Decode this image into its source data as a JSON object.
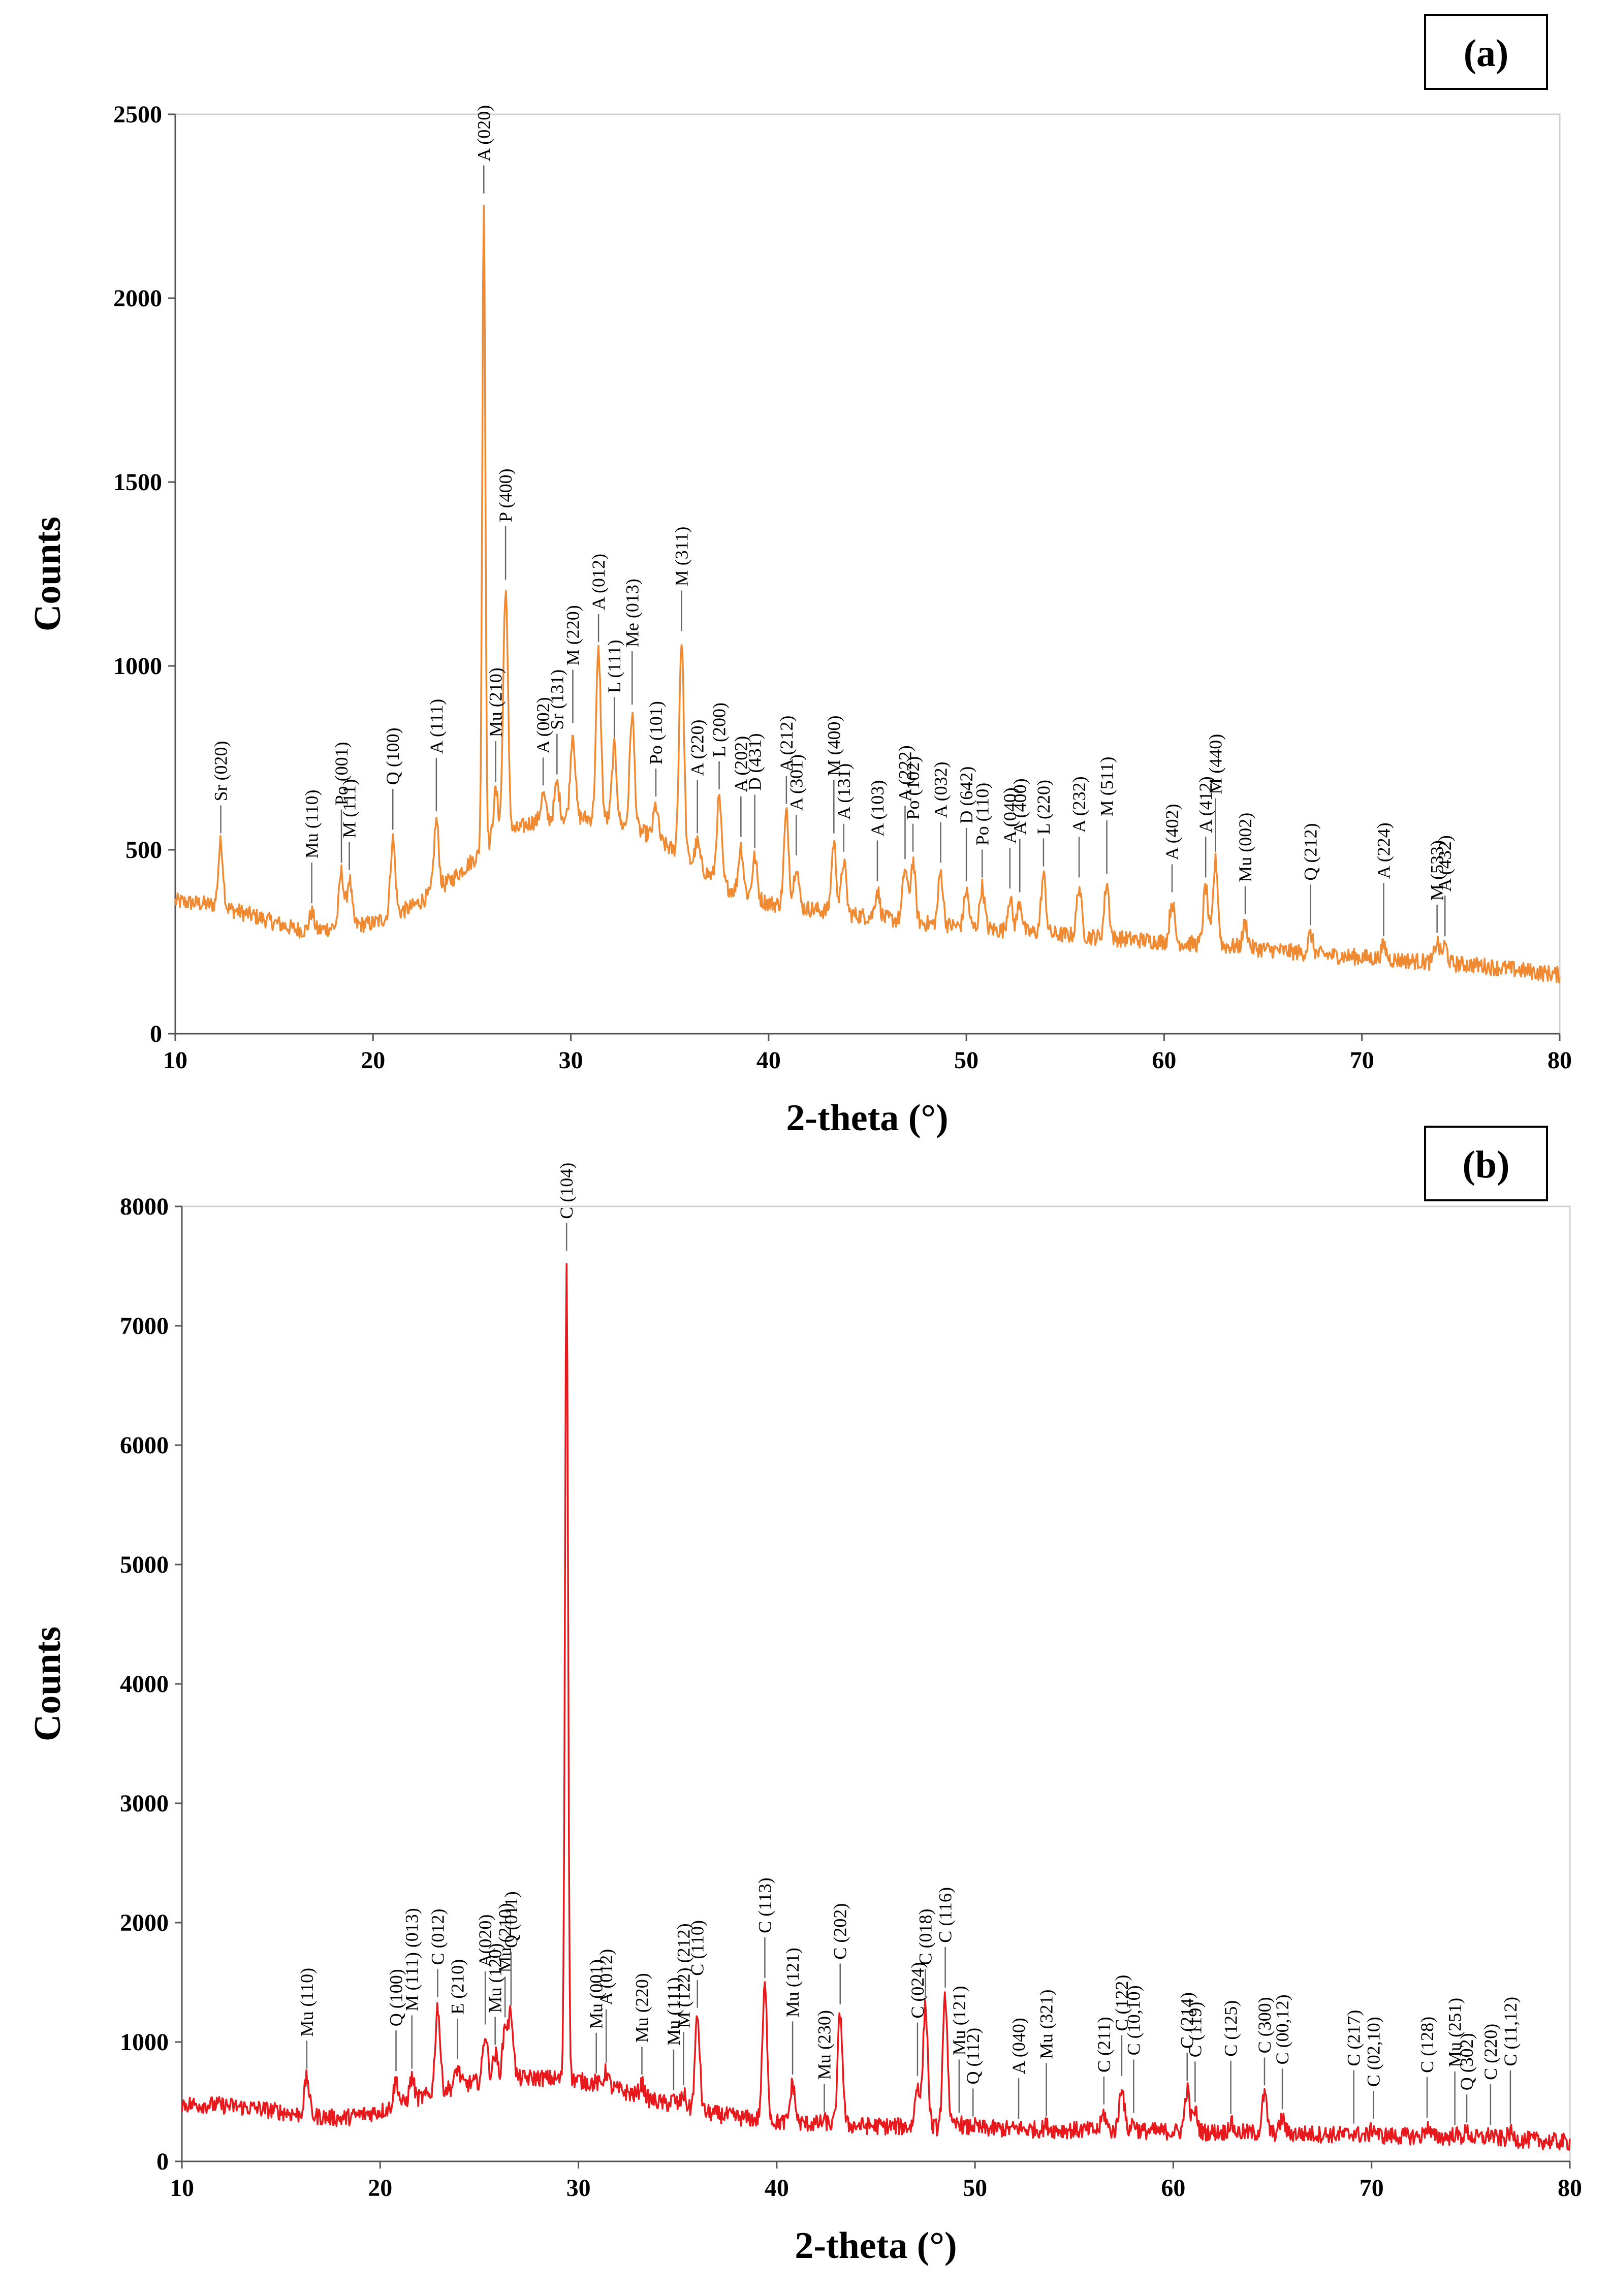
{
  "chart_data": [
    {
      "type": "line",
      "panel_label": "(a)",
      "xlabel": "2-theta (°)",
      "ylabel": "Counts",
      "xlim": [
        10,
        80
      ],
      "ylim": [
        0,
        2500
      ],
      "xticks": [
        "10",
        "20",
        "30",
        "40",
        "50",
        "60",
        "70",
        "80"
      ],
      "yticks": [
        "0",
        "500",
        "1000",
        "1500",
        "2000",
        "2500"
      ],
      "line_color": "#f08a32",
      "baseline": [
        [
          10,
          360
        ],
        [
          12,
          350
        ],
        [
          14,
          320
        ],
        [
          16,
          285
        ],
        [
          17,
          278
        ],
        [
          18,
          290
        ],
        [
          20,
          300
        ],
        [
          22,
          345
        ],
        [
          24,
          420
        ],
        [
          26,
          520
        ],
        [
          28,
          575
        ],
        [
          30,
          590
        ],
        [
          32,
          580
        ],
        [
          34,
          540
        ],
        [
          36,
          470
        ],
        [
          38,
          395
        ],
        [
          40,
          355
        ],
        [
          44,
          325
        ],
        [
          48,
          300
        ],
        [
          52,
          280
        ],
        [
          56,
          265
        ],
        [
          60,
          250
        ],
        [
          64,
          235
        ],
        [
          68,
          215
        ],
        [
          72,
          200
        ],
        [
          76,
          185
        ],
        [
          80,
          160
        ]
      ],
      "peaks": [
        {
          "x": 12.3,
          "y": 520,
          "label": "Sr (020)"
        },
        {
          "x": 16.9,
          "y": 330,
          "label": "Mu (110)"
        },
        {
          "x": 18.4,
          "y": 440,
          "label": "Po (001)"
        },
        {
          "x": 18.8,
          "y": 420,
          "label": "M (111)"
        },
        {
          "x": 21.0,
          "y": 530,
          "label": "Q (100)"
        },
        {
          "x": 23.2,
          "y": 580,
          "label": "A (111)"
        },
        {
          "x": 25.6,
          "y": 2260,
          "label": "A (020)"
        },
        {
          "x": 26.2,
          "y": 660,
          "label": "Mu (210)"
        },
        {
          "x": 26.7,
          "y": 1210,
          "label": "P (400)"
        },
        {
          "x": 28.6,
          "y": 650,
          "label": "A (002)"
        },
        {
          "x": 29.3,
          "y": 680,
          "label": "Sr (131)"
        },
        {
          "x": 30.1,
          "y": 820,
          "label": "M (220)"
        },
        {
          "x": 31.4,
          "y": 1040,
          "label": "A (012)"
        },
        {
          "x": 32.2,
          "y": 780,
          "label": "L (111)"
        },
        {
          "x": 33.1,
          "y": 870,
          "label": "Me (013)"
        },
        {
          "x": 34.3,
          "y": 620,
          "label": "Po (101)"
        },
        {
          "x": 35.6,
          "y": 1070,
          "label": "M (311)"
        },
        {
          "x": 36.4,
          "y": 520,
          "label": "A (220)"
        },
        {
          "x": 37.5,
          "y": 640,
          "label": "L (200)"
        },
        {
          "x": 38.6,
          "y": 510,
          "label": "A (202)"
        },
        {
          "x": 39.3,
          "y": 480,
          "label": "D (431)"
        },
        {
          "x": 40.9,
          "y": 600,
          "label": "A (212)"
        },
        {
          "x": 41.4,
          "y": 460,
          "label": "A (301)"
        },
        {
          "x": 43.3,
          "y": 520,
          "label": "M (400)"
        },
        {
          "x": 43.8,
          "y": 470,
          "label": "A (131)"
        },
        {
          "x": 45.5,
          "y": 390,
          "label": "A (103)"
        },
        {
          "x": 46.9,
          "y": 450,
          "label": "A (222)"
        },
        {
          "x": 47.3,
          "y": 470,
          "label": "Po (102)"
        },
        {
          "x": 48.7,
          "y": 440,
          "label": "A (032)"
        },
        {
          "x": 50.0,
          "y": 390,
          "label": "D (642)"
        },
        {
          "x": 50.8,
          "y": 400,
          "label": "Po (110)"
        },
        {
          "x": 52.2,
          "y": 370,
          "label": "A (040)"
        },
        {
          "x": 52.7,
          "y": 360,
          "label": "A (400)"
        },
        {
          "x": 53.9,
          "y": 430,
          "label": "L (220)"
        },
        {
          "x": 55.7,
          "y": 400,
          "label": "A (232)"
        },
        {
          "x": 57.1,
          "y": 410,
          "label": "M (511)"
        },
        {
          "x": 60.4,
          "y": 360,
          "label": "A (402)"
        },
        {
          "x": 62.1,
          "y": 400,
          "label": "A (412)"
        },
        {
          "x": 62.6,
          "y": 470,
          "label": "M (440)"
        },
        {
          "x": 64.1,
          "y": 300,
          "label": "Mu (002)"
        },
        {
          "x": 67.4,
          "y": 270,
          "label": "Q (212)"
        },
        {
          "x": 71.1,
          "y": 240,
          "label": "A (224)"
        },
        {
          "x": 73.8,
          "y": 250,
          "label": "M (533)"
        },
        {
          "x": 74.2,
          "y": 240,
          "label": "A (432)"
        }
      ]
    },
    {
      "type": "line",
      "panel_label": "(b)",
      "xlabel": "2-theta (°)",
      "ylabel": "Counts",
      "xlim": [
        10,
        80
      ],
      "ylim": [
        0,
        8000
      ],
      "xticks": [
        "10",
        "20",
        "30",
        "40",
        "50",
        "60",
        "70",
        "80"
      ],
      "yticks": [
        "0",
        "1000",
        "2000",
        "3000",
        "4000",
        "5000",
        "6000",
        "7000",
        "8000"
      ],
      "line_color": "#e8191c",
      "baseline": [
        [
          10,
          480
        ],
        [
          12,
          470
        ],
        [
          14,
          440
        ],
        [
          16,
          390
        ],
        [
          18,
          360
        ],
        [
          20,
          420
        ],
        [
          22,
          530
        ],
        [
          24,
          640
        ],
        [
          26,
          690
        ],
        [
          28,
          700
        ],
        [
          30,
          680
        ],
        [
          32,
          600
        ],
        [
          34,
          500
        ],
        [
          36,
          420
        ],
        [
          38,
          370
        ],
        [
          40,
          330
        ],
        [
          44,
          300
        ],
        [
          48,
          285
        ],
        [
          52,
          270
        ],
        [
          56,
          260
        ],
        [
          60,
          250
        ],
        [
          64,
          240
        ],
        [
          68,
          225
        ],
        [
          72,
          210
        ],
        [
          76,
          195
        ],
        [
          80,
          160
        ]
      ],
      "peaks": [
        {
          "x": 16.3,
          "y": 700,
          "label": "Mu (110)"
        },
        {
          "x": 20.8,
          "y": 680,
          "label": "Q (100)"
        },
        {
          "x": 21.6,
          "y": 700,
          "label": "M (111) (013)"
        },
        {
          "x": 22.9,
          "y": 1300,
          "label": "C (012)"
        },
        {
          "x": 23.9,
          "y": 780,
          "label": "E (210)"
        },
        {
          "x": 25.3,
          "y": 1070,
          "label": "A(020)"
        },
        {
          "x": 25.8,
          "y": 900,
          "label": "Mu (120)"
        },
        {
          "x": 26.3,
          "y": 1130,
          "label": "Mu (210)"
        },
        {
          "x": 26.6,
          "y": 1230,
          "label": "Q (011)"
        },
        {
          "x": 29.4,
          "y": 7550,
          "label": "C (104)"
        },
        {
          "x": 30.9,
          "y": 660,
          "label": "Mu (001)"
        },
        {
          "x": 31.4,
          "y": 750,
          "label": "A (012)"
        },
        {
          "x": 33.2,
          "y": 650,
          "label": "Mu (220)"
        },
        {
          "x": 34.8,
          "y": 520,
          "label": "Mu (111)"
        },
        {
          "x": 35.3,
          "y": 560,
          "label": "M (122) (212)"
        },
        {
          "x": 36.0,
          "y": 1210,
          "label": "C (110)"
        },
        {
          "x": 39.4,
          "y": 1460,
          "label": "C (113)"
        },
        {
          "x": 40.8,
          "y": 650,
          "label": "Mu (121)"
        },
        {
          "x": 42.4,
          "y": 340,
          "label": "Mu (230)"
        },
        {
          "x": 43.2,
          "y": 1240,
          "label": "C (202)"
        },
        {
          "x": 47.1,
          "y": 640,
          "label": "C (024)"
        },
        {
          "x": 47.5,
          "y": 1300,
          "label": "C (018)"
        },
        {
          "x": 48.5,
          "y": 1380,
          "label": "C (116)"
        },
        {
          "x": 49.2,
          "y": 330,
          "label": "Mu (121)"
        },
        {
          "x": 49.9,
          "y": 300,
          "label": "Q (112)"
        },
        {
          "x": 52.2,
          "y": 280,
          "label": "A (040)"
        },
        {
          "x": 53.6,
          "y": 300,
          "label": "Mu (321)"
        },
        {
          "x": 56.5,
          "y": 400,
          "label": "C (211)"
        },
        {
          "x": 57.4,
          "y": 640,
          "label": "C (122)"
        },
        {
          "x": 58.0,
          "y": 330,
          "label": "C (10,10)"
        },
        {
          "x": 60.7,
          "y": 600,
          "label": "C (214)"
        },
        {
          "x": 61.1,
          "y": 420,
          "label": "C (119)"
        },
        {
          "x": 62.9,
          "y": 320,
          "label": "C (125)"
        },
        {
          "x": 64.6,
          "y": 560,
          "label": "C (300)"
        },
        {
          "x": 65.5,
          "y": 360,
          "label": "C (00,12)"
        },
        {
          "x": 69.1,
          "y": 240,
          "label": "C (217)"
        },
        {
          "x": 70.1,
          "y": 280,
          "label": "C (02,10)"
        },
        {
          "x": 72.8,
          "y": 290,
          "label": "C (128)"
        },
        {
          "x": 74.2,
          "y": 230,
          "label": "Mu (251)"
        },
        {
          "x": 74.8,
          "y": 250,
          "label": "Q (302)"
        },
        {
          "x": 76.0,
          "y": 230,
          "label": "C (220)"
        },
        {
          "x": 77.0,
          "y": 240,
          "label": "C (11,12)"
        }
      ]
    }
  ]
}
